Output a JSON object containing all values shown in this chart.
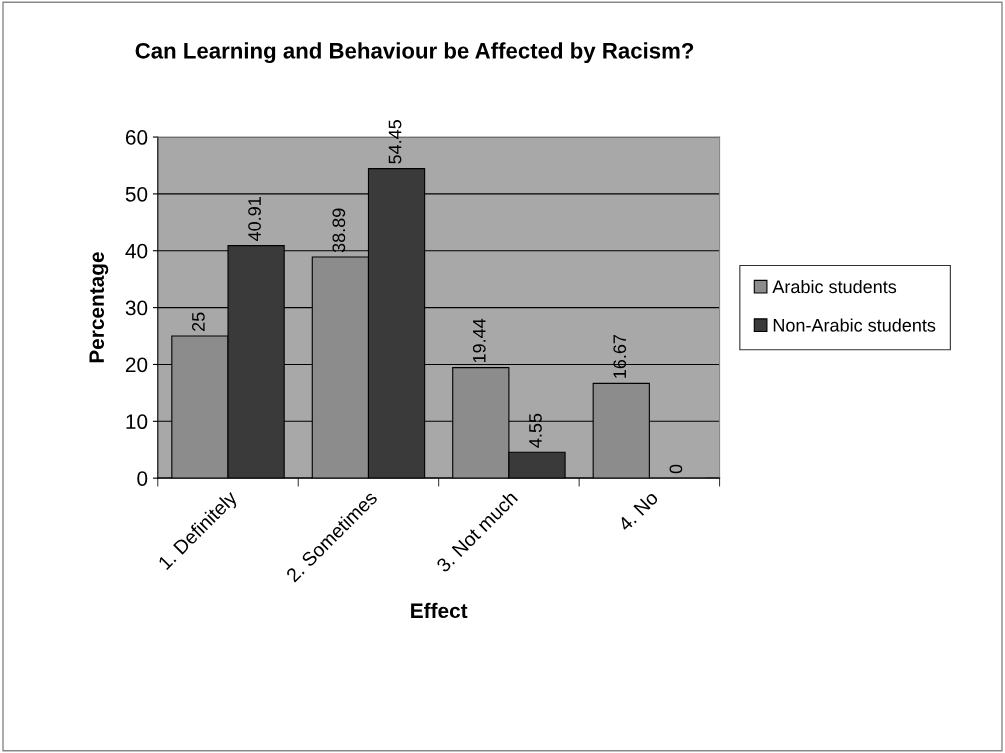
{
  "chart_data": {
    "type": "bar",
    "title": "Can Learning and Behaviour be Affected by Racism?",
    "xlabel": "Effect",
    "ylabel": "Percentage",
    "categories": [
      "1. Definitely",
      "2. Sometimes",
      "3. Not much",
      "4. No"
    ],
    "series": [
      {
        "name": "Arabic students",
        "color": "#8c8c8c",
        "values": [
          25,
          38.89,
          19.44,
          16.67
        ]
      },
      {
        "name": "Non-Arabic students",
        "color": "#3a3a3a",
        "values": [
          40.91,
          54.45,
          4.55,
          0
        ]
      }
    ],
    "ylim": [
      0,
      60
    ],
    "yticks": [
      0,
      10,
      20,
      30,
      40,
      50,
      60
    ],
    "grid": "y",
    "legend": "right",
    "data_labels": true
  }
}
